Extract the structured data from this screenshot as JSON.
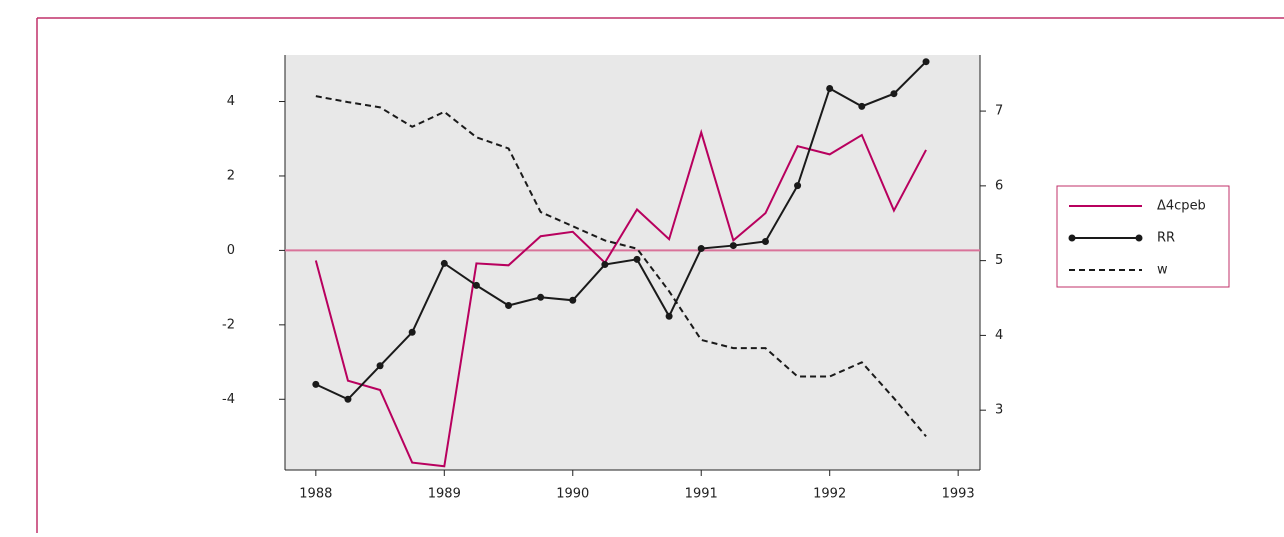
{
  "chart_data": {
    "type": "line",
    "x": [
      1988,
      1988.25,
      1988.5,
      1988.75,
      1989,
      1989.25,
      1989.5,
      1989.75,
      1990,
      1990.25,
      1990.5,
      1990.75,
      1991,
      1991.25,
      1991.5,
      1991.75,
      1992,
      1992.25,
      1992.5,
      1992.75
    ],
    "series": [
      {
        "name": "Δ4cpeb",
        "color": "#b8005e",
        "style": "solid",
        "markers": false,
        "axis": "y",
        "values": [
          -0.27,
          -3.5,
          -3.75,
          -5.7,
          -5.8,
          -0.35,
          -0.4,
          0.38,
          0.5,
          -0.33,
          1.1,
          0.3,
          3.17,
          0.27,
          1.0,
          2.8,
          2.58,
          3.1,
          1.07,
          2.7
        ]
      },
      {
        "name": "RR",
        "color": "#1a1a1a",
        "style": "solid",
        "markers": true,
        "axis": "y",
        "values": [
          -3.6,
          -4.0,
          -3.1,
          -2.2,
          -0.35,
          -0.94,
          -1.48,
          -1.26,
          -1.34,
          -0.38,
          -0.24,
          -1.77,
          0.05,
          0.13,
          0.24,
          1.74,
          4.35,
          3.87,
          4.21,
          5.07
        ]
      },
      {
        "name": "w",
        "color": "#1a1a1a",
        "style": "dashed",
        "markers": false,
        "axis": "y2",
        "values": [
          7.2,
          7.12,
          7.05,
          6.79,
          6.99,
          6.65,
          6.5,
          5.65,
          5.46,
          5.27,
          5.16,
          4.59,
          3.94,
          3.83,
          3.83,
          3.45,
          3.45,
          3.64,
          3.16,
          2.65
        ]
      }
    ],
    "xlim": [
      1987.76,
      1993.17
    ],
    "xticks": [
      1988,
      1989,
      1990,
      1991,
      1992,
      1993
    ],
    "ylim": [
      -5.9,
      5.25
    ],
    "yticks": [
      -4,
      -2,
      0,
      2,
      4
    ],
    "y2lim": [
      2.2,
      7.75
    ],
    "y2ticks": [
      3,
      4,
      5,
      6,
      7
    ],
    "reference_line": {
      "value": 0,
      "color": "#d9739a"
    },
    "background": "#e8e8e8",
    "legend": "right"
  }
}
